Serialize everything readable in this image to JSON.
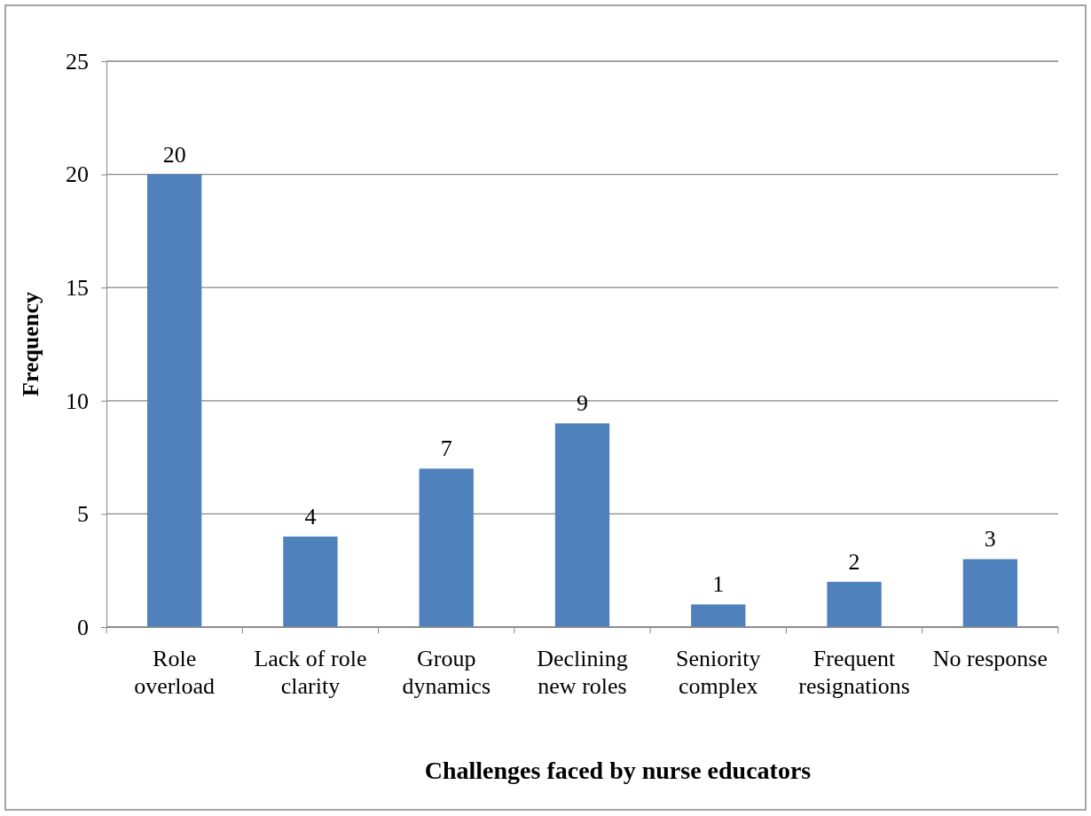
{
  "chart_data": {
    "type": "bar",
    "xlabel": "Challenges faced by nurse educators",
    "ylabel": "Frequency",
    "categories": [
      "Role overload",
      "Lack of role clarity",
      "Group dynamics",
      "Declining new roles",
      "Seniority complex",
      "Frequent resignations",
      "No response"
    ],
    "values": [
      20,
      4,
      7,
      9,
      1,
      2,
      3
    ],
    "color": "#4f81bd",
    "ylim": [
      0,
      25
    ],
    "yticks": [
      0,
      5,
      10,
      15,
      20,
      25
    ],
    "grid": "y",
    "data_labels": true
  }
}
